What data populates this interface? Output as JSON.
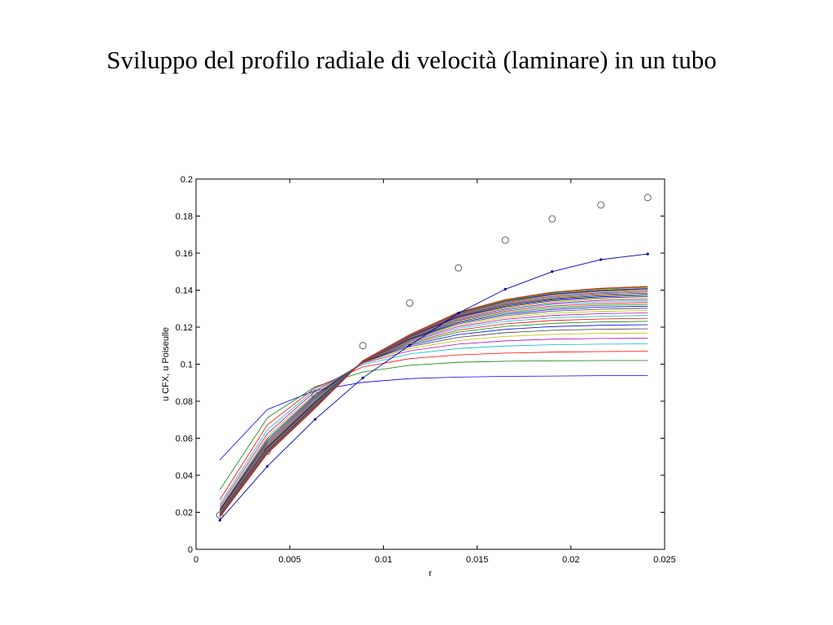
{
  "title": "Sviluppo del profilo radiale di velocità (laminare) in un tubo",
  "chart_data": {
    "type": "line",
    "xlabel": "r",
    "ylabel": "u CFX, u Poiseulle",
    "xlim": [
      0,
      0.025
    ],
    "ylim": [
      0,
      0.2
    ],
    "xticks": [
      "0",
      "0.005",
      "0.01",
      "0.015",
      "0.02",
      "0.025"
    ],
    "yticks": [
      "0",
      "0.02",
      "0.04",
      "0.06",
      "0.08",
      "0.1",
      "0.12",
      "0.14",
      "0.16",
      "0.18",
      "0.2"
    ],
    "grid": false,
    "x_cfx": [
      0.00127,
      0.0038,
      0.00635,
      0.0089,
      0.0114,
      0.014,
      0.0165,
      0.019,
      0.0216,
      0.0241
    ],
    "series": [
      {
        "color": "#0000ff",
        "values": [
          0.0483,
          0.0755,
          0.0858,
          0.0902,
          0.0922,
          0.093,
          0.0934,
          0.0936,
          0.0938,
          0.0938
        ]
      },
      {
        "color": "#008000",
        "values": [
          0.0322,
          0.071,
          0.0878,
          0.0958,
          0.0994,
          0.101,
          0.1016,
          0.1018,
          0.102,
          0.102
        ]
      },
      {
        "color": "#ff0000",
        "values": [
          0.0268,
          0.0672,
          0.0872,
          0.0985,
          0.103,
          0.105,
          0.106,
          0.1065,
          0.1068,
          0.107
        ]
      },
      {
        "color": "#00bfbf",
        "values": [
          0.0245,
          0.0645,
          0.0863,
          0.0998,
          0.1055,
          0.1085,
          0.1098,
          0.1105,
          0.1108,
          0.111
        ]
      },
      {
        "color": "#bf00bf",
        "values": [
          0.0232,
          0.0625,
          0.0853,
          0.1005,
          0.1072,
          0.1108,
          0.1126,
          0.1135,
          0.1139,
          0.114
        ]
      },
      {
        "color": "#bfbf00",
        "values": [
          0.0223,
          0.061,
          0.0843,
          0.1008,
          0.1085,
          0.1128,
          0.115,
          0.1161,
          0.1166,
          0.1168
        ]
      },
      {
        "color": "#404040",
        "values": [
          0.0216,
          0.0598,
          0.0835,
          0.101,
          0.1095,
          0.1145,
          0.117,
          0.1183,
          0.1189,
          0.1191
        ]
      },
      {
        "color": "#0000ff",
        "values": [
          0.021,
          0.0588,
          0.0828,
          0.1011,
          0.1103,
          0.116,
          0.1188,
          0.1203,
          0.121,
          0.1213
        ]
      },
      {
        "color": "#008000",
        "values": [
          0.0206,
          0.058,
          0.0821,
          0.1012,
          0.111,
          0.1173,
          0.1204,
          0.122,
          0.1228,
          0.1231
        ]
      },
      {
        "color": "#ff0000",
        "values": [
          0.0202,
          0.0573,
          0.0815,
          0.1013,
          0.1116,
          0.1184,
          0.1218,
          0.1236,
          0.1244,
          0.1248
        ]
      },
      {
        "color": "#00bfbf",
        "values": [
          0.0199,
          0.0567,
          0.081,
          0.1014,
          0.1121,
          0.1194,
          0.1231,
          0.125,
          0.1259,
          0.1263
        ]
      },
      {
        "color": "#bf00bf",
        "values": [
          0.0196,
          0.0562,
          0.0805,
          0.1014,
          0.1125,
          0.1203,
          0.1242,
          0.1263,
          0.1273,
          0.1277
        ]
      },
      {
        "color": "#bfbf00",
        "values": [
          0.0194,
          0.0557,
          0.0801,
          0.1015,
          0.1129,
          0.1211,
          0.1252,
          0.1275,
          0.1285,
          0.129
        ]
      },
      {
        "color": "#404040",
        "values": [
          0.0192,
          0.0553,
          0.0797,
          0.1015,
          0.1132,
          0.1218,
          0.1262,
          0.1286,
          0.1297,
          0.1302
        ]
      },
      {
        "color": "#0000ff",
        "values": [
          0.019,
          0.0549,
          0.0793,
          0.1016,
          0.1135,
          0.1224,
          0.127,
          0.1296,
          0.1308,
          0.1313
        ]
      },
      {
        "color": "#008000",
        "values": [
          0.0188,
          0.0546,
          0.079,
          0.1016,
          0.1138,
          0.123,
          0.1278,
          0.1305,
          0.1318,
          0.1323
        ]
      },
      {
        "color": "#ff0000",
        "values": [
          0.0187,
          0.0543,
          0.0787,
          0.1016,
          0.114,
          0.1236,
          0.1286,
          0.1314,
          0.1327,
          0.1333
        ]
      },
      {
        "color": "#00bfbf",
        "values": [
          0.0185,
          0.054,
          0.0784,
          0.1017,
          0.1142,
          0.124,
          0.1292,
          0.1322,
          0.1336,
          0.1342
        ]
      },
      {
        "color": "#bf00bf",
        "values": [
          0.0184,
          0.0537,
          0.0781,
          0.1017,
          0.1144,
          0.1245,
          0.1298,
          0.1329,
          0.1344,
          0.135
        ]
      },
      {
        "color": "#bfbf00",
        "values": [
          0.0183,
          0.0535,
          0.0779,
          0.1017,
          0.1146,
          0.1249,
          0.1304,
          0.1336,
          0.1351,
          0.1358
        ]
      },
      {
        "color": "#404040",
        "values": [
          0.0182,
          0.0532,
          0.0777,
          0.1017,
          0.1148,
          0.1253,
          0.1309,
          0.1342,
          0.1358,
          0.1365
        ]
      },
      {
        "color": "#0000ff",
        "values": [
          0.0181,
          0.053,
          0.0775,
          0.1018,
          0.1149,
          0.1256,
          0.1314,
          0.1348,
          0.1364,
          0.1372
        ]
      },
      {
        "color": "#008000",
        "values": [
          0.018,
          0.0528,
          0.0773,
          0.1018,
          0.1151,
          0.126,
          0.1319,
          0.1353,
          0.137,
          0.1378
        ]
      },
      {
        "color": "#ff0000",
        "values": [
          0.0179,
          0.0527,
          0.0771,
          0.1018,
          0.1152,
          0.1263,
          0.1323,
          0.1358,
          0.1376,
          0.1384
        ]
      },
      {
        "color": "#00bfbf",
        "values": [
          0.0178,
          0.0525,
          0.0769,
          0.1018,
          0.1153,
          0.1266,
          0.1327,
          0.1363,
          0.1381,
          0.139
        ]
      },
      {
        "color": "#bf00bf",
        "values": [
          0.0178,
          0.0524,
          0.0768,
          0.1018,
          0.1154,
          0.1268,
          0.1331,
          0.1367,
          0.1386,
          0.1395
        ]
      },
      {
        "color": "#bfbf00",
        "values": [
          0.0177,
          0.0522,
          0.0766,
          0.1018,
          0.1155,
          0.1271,
          0.1334,
          0.1372,
          0.1391,
          0.14
        ]
      },
      {
        "color": "#404040",
        "values": [
          0.0176,
          0.0521,
          0.0765,
          0.1019,
          0.1156,
          0.1273,
          0.1338,
          0.1376,
          0.1395,
          0.1405
        ]
      },
      {
        "color": "#0000ff",
        "values": [
          0.0176,
          0.052,
          0.0764,
          0.1019,
          0.1157,
          0.1275,
          0.1341,
          0.1379,
          0.1399,
          0.1409
        ]
      },
      {
        "color": "#bfbf00",
        "values": [
          0.0175,
          0.0519,
          0.0763,
          0.1019,
          0.1158,
          0.1277,
          0.1344,
          0.1383,
          0.1403,
          0.1413
        ]
      },
      {
        "color": "#008000",
        "values": [
          0.0175,
          0.0518,
          0.0762,
          0.1019,
          0.1159,
          0.1279,
          0.1347,
          0.1386,
          0.1407,
          0.1417
        ]
      },
      {
        "color": "#ff0000",
        "values": [
          0.0174,
          0.0517,
          0.0761,
          0.1019,
          0.116,
          0.1281,
          0.1349,
          0.1389,
          0.141,
          0.142
        ]
      }
    ],
    "dotted_series": {
      "color": "#0000aa",
      "values": [
        0.0157,
        0.0448,
        0.0702,
        0.0926,
        0.1102,
        0.1276,
        0.1405,
        0.15,
        0.1565,
        0.1595
      ]
    },
    "poiseuille": {
      "x": [
        0.00127,
        0.0038,
        0.00635,
        0.0089,
        0.0114,
        0.014,
        0.0165,
        0.019,
        0.0216,
        0.0241
      ],
      "values": [
        0.0185,
        0.053,
        0.0835,
        0.11,
        0.133,
        0.152,
        0.167,
        0.1785,
        0.186,
        0.19
      ]
    }
  }
}
